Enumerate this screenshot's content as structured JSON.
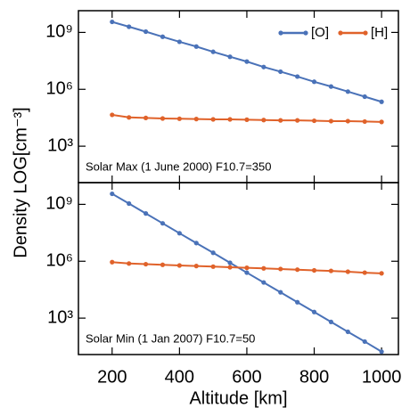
{
  "ylabel": "Density LOG[cm⁻³]",
  "chart_data": [
    {
      "type": "line",
      "annotation": "Solar Max (1 June 2000) F10.7=350",
      "x": [
        200,
        250,
        300,
        350,
        400,
        450,
        500,
        550,
        600,
        650,
        700,
        750,
        800,
        850,
        900,
        950,
        1000
      ],
      "series": [
        {
          "name": "[O]",
          "color": "#4a72b8",
          "values": [
            3600000000,
            2000000000,
            1100000000,
            590000000,
            320000000,
            180000000,
            95000000,
            52000000,
            29000000,
            15000000,
            8500000,
            4700000,
            2500000,
            1400000,
            760000,
            410000,
            220000
          ]
        },
        {
          "name": "[H]",
          "color": "#e0622a",
          "values": [
            45000,
            33000,
            31000,
            29000,
            28000,
            27000,
            26000,
            26000,
            25000,
            24000,
            23000,
            23000,
            22000,
            21000,
            21000,
            20000,
            19000
          ]
        }
      ],
      "xlim": [
        100,
        1050
      ],
      "ylim": [
        12,
        14000000000
      ],
      "log_y": true,
      "yticks": [
        {
          "value": 1000,
          "label": "10³"
        },
        {
          "value": 1000000,
          "label": "10⁶"
        },
        {
          "value": 1000000000,
          "label": "10⁹"
        }
      ],
      "legend": "upper right"
    },
    {
      "type": "line",
      "annotation": "Solar Min (1 Jan 2007) F10.7=50",
      "xlabel": "Altitude [km]",
      "x": [
        200,
        250,
        300,
        350,
        400,
        450,
        500,
        550,
        600,
        650,
        700,
        750,
        800,
        850,
        900,
        950,
        1000
      ],
      "series": [
        {
          "color": "#4a72b8",
          "values": [
            3600000000,
            1100000000,
            330000000,
            100000000,
            30000000,
            9100000,
            2800000,
            830000,
            250000,
            76000,
            23000,
            6900,
            2100,
            630,
            190,
            58,
            17
          ]
        },
        {
          "color": "#e0622a",
          "values": [
            900000,
            760000,
            700000,
            650000,
            600000,
            560000,
            520000,
            480000,
            450000,
            420000,
            390000,
            360000,
            330000,
            310000,
            280000,
            250000,
            230000
          ]
        }
      ],
      "xlim": [
        100,
        1050
      ],
      "ylim": [
        12,
        14000000000
      ],
      "log_y": true,
      "xticks": [
        200,
        400,
        600,
        800,
        1000
      ],
      "yticks": [
        {
          "value": 1000,
          "label": "10³"
        },
        {
          "value": 1000000,
          "label": "10⁶"
        },
        {
          "value": 1000000000,
          "label": "10⁹"
        }
      ]
    }
  ]
}
